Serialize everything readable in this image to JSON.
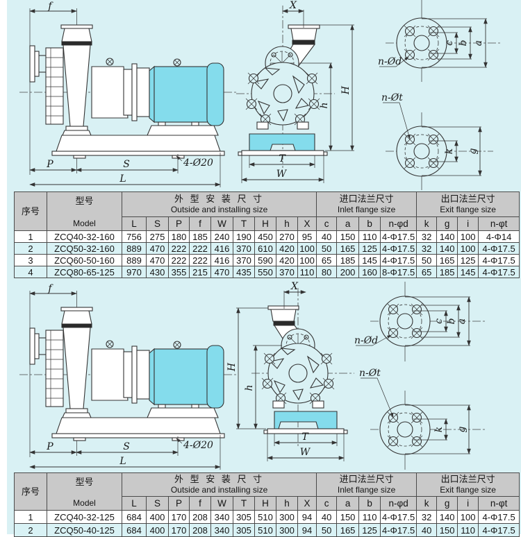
{
  "colors": {
    "page_bg": "#d9f1f4",
    "motor_cyan": "#84dcec",
    "table_header_gray": "#c9c9c9",
    "row_alt_cyan": "#d9f2f5",
    "line": "#333333"
  },
  "drawing_labels": {
    "f": "f",
    "p": "P",
    "s": "S",
    "l": "L",
    "slot_note": "4-Ø20",
    "x": "X",
    "h_total": "H",
    "h_center": "h",
    "t": "T",
    "w": "W",
    "inlet_holes": "n-Ød",
    "outlet_holes": "n-Øt",
    "c": "c",
    "b": "b",
    "a": "a",
    "k": "k",
    "g": "g"
  },
  "table1": {
    "header": {
      "index": "序号",
      "model_zh": "型号",
      "model_en": "Model",
      "outside_zh": "外 型 安 装 尺 寸",
      "outside_en": "Outside and installing size",
      "inlet_zh": "进口法兰尺寸",
      "inlet_en": "Inlet flange size",
      "exit_zh": "出口法兰尺寸",
      "exit_en": "Exit flange size",
      "cols": [
        "L",
        "S",
        "P",
        "f",
        "W",
        "T",
        "H",
        "h",
        "X",
        "c",
        "a",
        "b",
        "n-φd",
        "k",
        "g",
        "i",
        "n-φt"
      ]
    },
    "rows": [
      {
        "no": "1",
        "model": "ZCQ40-32-160",
        "v": [
          "756",
          "275",
          "180",
          "185",
          "240",
          "190",
          "450",
          "270",
          "95",
          "40",
          "150",
          "110",
          "4-Φ17.5",
          "32",
          "140",
          "100",
          "4-Φ14"
        ]
      },
      {
        "no": "2",
        "model": "ZCQ50-32-160",
        "v": [
          "889",
          "470",
          "222",
          "222",
          "416",
          "370",
          "610",
          "420",
          "100",
          "50",
          "165",
          "125",
          "4-Φ17.5",
          "32",
          "140",
          "100",
          "4-Φ17.5"
        ]
      },
      {
        "no": "3",
        "model": "ZCQ60-50-160",
        "v": [
          "889",
          "470",
          "222",
          "222",
          "416",
          "370",
          "590",
          "420",
          "100",
          "65",
          "185",
          "145",
          "4-Φ17.5",
          "50",
          "165",
          "125",
          "4-Φ17.5"
        ]
      },
      {
        "no": "4",
        "model": "ZCQ80-65-125",
        "v": [
          "970",
          "430",
          "355",
          "215",
          "470",
          "435",
          "550",
          "370",
          "110",
          "80",
          "200",
          "160",
          "8-Φ17.5",
          "65",
          "185",
          "145",
          "4-Φ17.5"
        ]
      }
    ]
  },
  "table2": {
    "header": {
      "index": "序号",
      "model_zh": "型号",
      "model_en": "Model",
      "outside_zh": "外 型 安 装 尺 寸",
      "outside_en": "Outside and installing size",
      "inlet_zh": "进口法兰尺寸",
      "inlet_en": "Inlet flange size",
      "exit_zh": "出口法兰尺寸",
      "exit_en": "Exit flange size",
      "cols": [
        "L",
        "S",
        "P",
        "f",
        "W",
        "T",
        "H",
        "h",
        "X",
        "c",
        "a",
        "b",
        "n-φd",
        "k",
        "g",
        "i",
        "n-φt"
      ]
    },
    "rows": [
      {
        "no": "1",
        "model": "ZCQ40-32-125",
        "v": [
          "684",
          "400",
          "170",
          "208",
          "340",
          "305",
          "510",
          "300",
          "94",
          "40",
          "150",
          "110",
          "4-Φ17.5",
          "32",
          "140",
          "100",
          "4-Φ17.5"
        ]
      },
      {
        "no": "2",
        "model": "ZCQ50-40-125",
        "v": [
          "684",
          "400",
          "170",
          "208",
          "340",
          "305",
          "510",
          "300",
          "94",
          "50",
          "165",
          "125",
          "4-Φ17.5",
          "40",
          "150",
          "110",
          "4-Φ17.5"
        ]
      }
    ]
  }
}
